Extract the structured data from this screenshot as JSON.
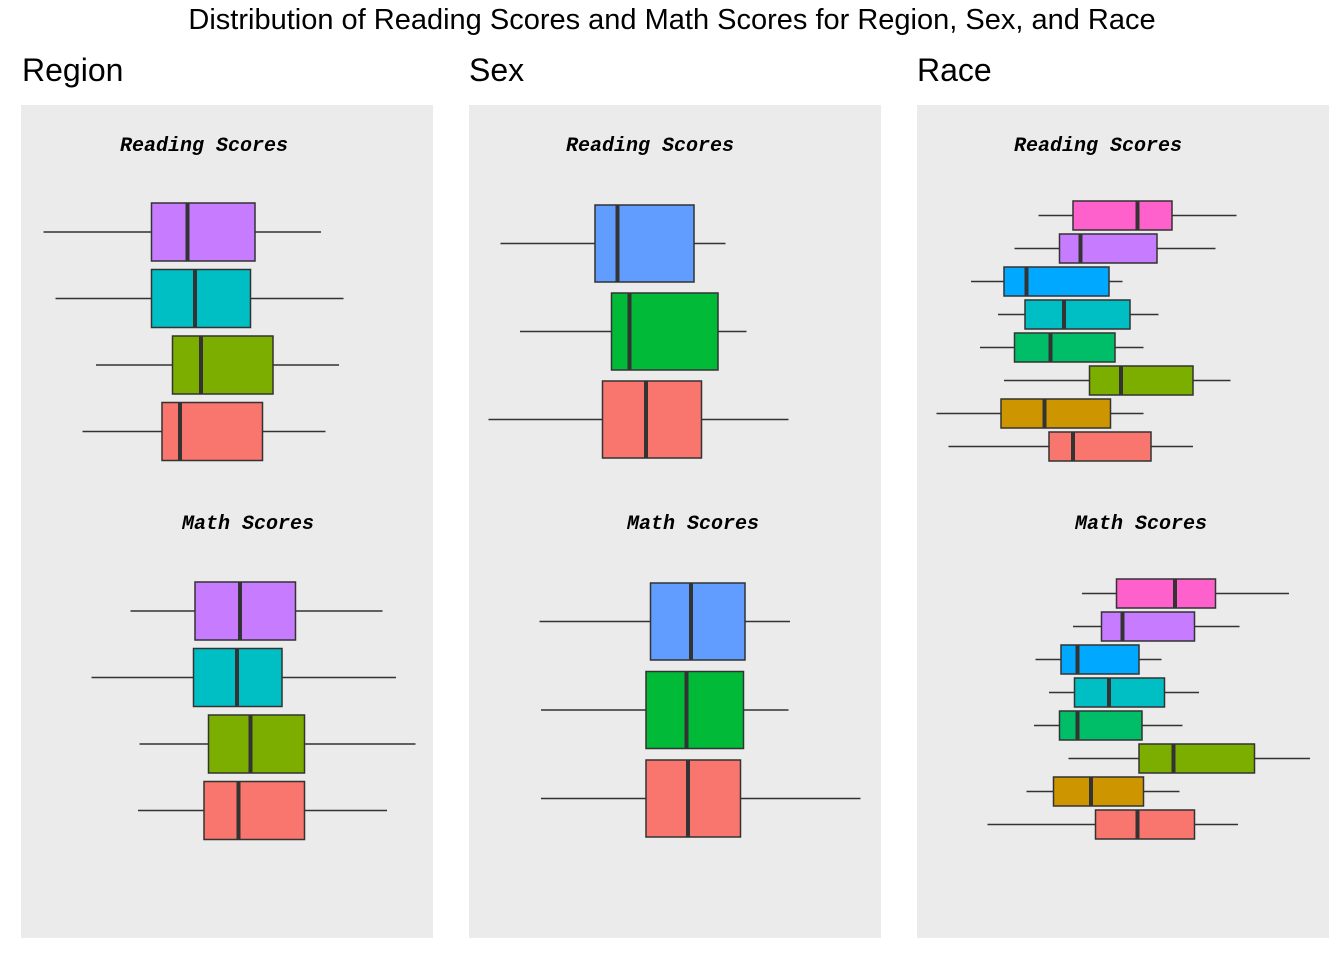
{
  "title": "Distribution of Reading Scores and Math Scores for Region, Sex, and Race",
  "chart_data": [
    {
      "type": "boxplot",
      "facet": "Region",
      "panels": [
        {
          "title": "Reading Scores",
          "boxes": [
            {
              "color": "#c77cff",
              "whisker_low": 15,
              "q1": 87,
              "median": 111,
              "q3": 156,
              "whisker_high": 200
            },
            {
              "color": "#00bfc4",
              "whisker_low": 23,
              "q1": 87,
              "median": 116,
              "q3": 153,
              "whisker_high": 215
            },
            {
              "color": "#7cae00",
              "whisker_low": 50,
              "q1": 101,
              "median": 120,
              "q3": 168,
              "whisker_high": 212
            },
            {
              "color": "#f8766d",
              "whisker_low": 41,
              "q1": 94,
              "median": 106,
              "q3": 161,
              "whisker_high": 203
            }
          ]
        },
        {
          "title": "Math Scores",
          "boxes": [
            {
              "color": "#c77cff",
              "whisker_low": 73,
              "q1": 116,
              "median": 146,
              "q3": 183,
              "whisker_high": 241
            },
            {
              "color": "#00bfc4",
              "whisker_low": 47,
              "q1": 115,
              "median": 144,
              "q3": 174,
              "whisker_high": 250
            },
            {
              "color": "#7cae00",
              "whisker_low": 79,
              "q1": 125,
              "median": 153,
              "q3": 189,
              "whisker_high": 263
            },
            {
              "color": "#f8766d",
              "whisker_low": 78,
              "q1": 122,
              "median": 145,
              "q3": 189,
              "whisker_high": 244
            }
          ]
        }
      ]
    },
    {
      "type": "boxplot",
      "facet": "Sex",
      "panels": [
        {
          "title": "Reading Scores",
          "boxes": [
            {
              "color": "#619cff",
              "whisker_low": 21,
              "q1": 84,
              "median": 99,
              "q3": 150,
              "whisker_high": 171
            },
            {
              "color": "#00ba38",
              "whisker_low": 34,
              "q1": 95,
              "median": 107,
              "q3": 166,
              "whisker_high": 185
            },
            {
              "color": "#f8766d",
              "whisker_low": 13,
              "q1": 89,
              "median": 118,
              "q3": 155,
              "whisker_high": 213
            }
          ]
        },
        {
          "title": "Math Scores",
          "boxes": [
            {
              "color": "#619cff",
              "whisker_low": 47,
              "q1": 121,
              "median": 148,
              "q3": 184,
              "whisker_high": 214
            },
            {
              "color": "#00ba38",
              "whisker_low": 48,
              "q1": 118,
              "median": 145,
              "q3": 183,
              "whisker_high": 213
            },
            {
              "color": "#f8766d",
              "whisker_low": 48,
              "q1": 118,
              "median": 146,
              "q3": 181,
              "whisker_high": 261
            }
          ]
        }
      ]
    },
    {
      "type": "boxplot",
      "facet": "Race",
      "panels": [
        {
          "title": "Reading Scores",
          "boxes": [
            {
              "color": "#ff61cc",
              "whisker_low": 81,
              "q1": 104,
              "median": 147,
              "q3": 170,
              "whisker_high": 213
            },
            {
              "color": "#c77cff",
              "whisker_low": 65,
              "q1": 95,
              "median": 109,
              "q3": 160,
              "whisker_high": 199
            },
            {
              "color": "#00a9ff",
              "whisker_low": 36,
              "q1": 58,
              "median": 73,
              "q3": 128,
              "whisker_high": 137
            },
            {
              "color": "#00bfc4",
              "whisker_low": 54,
              "q1": 72,
              "median": 98,
              "q3": 142,
              "whisker_high": 161
            },
            {
              "color": "#00be67",
              "whisker_low": 42,
              "q1": 65,
              "median": 89,
              "q3": 132,
              "whisker_high": 151
            },
            {
              "color": "#7cae00",
              "whisker_low": 58,
              "q1": 115,
              "median": 136,
              "q3": 184,
              "whisker_high": 209
            },
            {
              "color": "#cd9600",
              "whisker_low": 13,
              "q1": 56,
              "median": 85,
              "q3": 129,
              "whisker_high": 151
            },
            {
              "color": "#f8766d",
              "whisker_low": 21,
              "q1": 88,
              "median": 104,
              "q3": 156,
              "whisker_high": 184
            }
          ]
        },
        {
          "title": "Math Scores",
          "boxes": [
            {
              "color": "#ff61cc",
              "whisker_low": 110,
              "q1": 133,
              "median": 172,
              "q3": 199,
              "whisker_high": 248
            },
            {
              "color": "#c77cff",
              "whisker_low": 104,
              "q1": 123,
              "median": 137,
              "q3": 185,
              "whisker_high": 215
            },
            {
              "color": "#00a9ff",
              "whisker_low": 79,
              "q1": 96,
              "median": 107,
              "q3": 148,
              "whisker_high": 163
            },
            {
              "color": "#00bfc4",
              "whisker_low": 88,
              "q1": 105,
              "median": 128,
              "q3": 165,
              "whisker_high": 188
            },
            {
              "color": "#00be67",
              "whisker_low": 78,
              "q1": 95,
              "median": 107,
              "q3": 150,
              "whisker_high": 177
            },
            {
              "color": "#7cae00",
              "whisker_low": 101,
              "q1": 148,
              "median": 171,
              "q3": 225,
              "whisker_high": 262
            },
            {
              "color": "#cd9600",
              "whisker_low": 73,
              "q1": 91,
              "median": 116,
              "q3": 151,
              "whisker_high": 175
            },
            {
              "color": "#f8766d",
              "whisker_low": 47,
              "q1": 119,
              "median": 147,
              "q3": 185,
              "whisker_high": 214
            }
          ]
        }
      ]
    }
  ]
}
